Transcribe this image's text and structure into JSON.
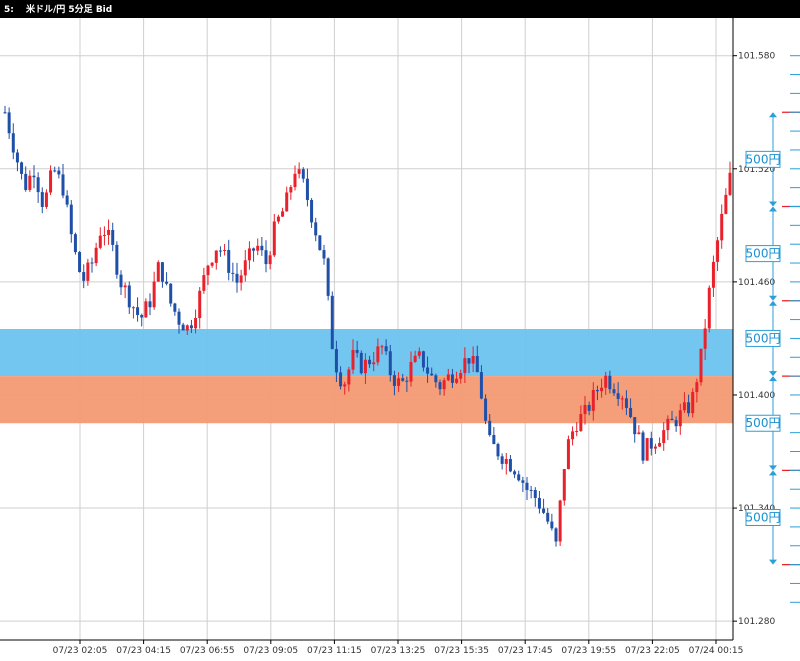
{
  "header": {
    "prefix": "5:",
    "title": "米ドル/円 5分足 Bid"
  },
  "colors": {
    "up": "#e8212a",
    "down": "#1f4fa8",
    "blue_band": "#6cc3ef",
    "orange_band": "#f39a72",
    "marker": "#2a9fd8",
    "red_tick": "#e8212a"
  },
  "chart_data": {
    "type": "candlestick",
    "title": "米ドル/円 5分足 Bid",
    "ylim": [
      101.27,
      101.6
    ],
    "y_ticks": [
      "101.580",
      "101.520",
      "101.460",
      "101.400",
      "101.340",
      "101.280"
    ],
    "x_ticks": [
      "07/23 02:05",
      "07/23 04:15",
      "07/23 06:55",
      "07/23 09:05",
      "07/23 11:15",
      "07/23 13:25",
      "07/23 15:35",
      "07/23 17:45",
      "07/23 19:55",
      "07/23 22:05",
      "07/24 00:15"
    ],
    "grid": true,
    "bands": [
      {
        "label": "500円",
        "from": 101.41,
        "to": 101.435,
        "color": "#6cc3ef"
      },
      {
        "label": "500円",
        "from": 101.385,
        "to": 101.41,
        "color": "#f39a72"
      }
    ],
    "markers": [
      {
        "label": "500円",
        "from": 101.5,
        "to": 101.55
      },
      {
        "label": "500円",
        "from": 101.45,
        "to": 101.5
      },
      {
        "label": "500円",
        "from": 101.41,
        "to": 101.45
      },
      {
        "label": "500円",
        "from": 101.36,
        "to": 101.41
      },
      {
        "label": "500円",
        "from": 101.31,
        "to": 101.36
      }
    ],
    "price_path": [
      101.55,
      101.53,
      101.51,
      101.52,
      101.5,
      101.52,
      101.51,
      101.48,
      101.46,
      101.47,
      101.49,
      101.48,
      101.46,
      101.45,
      101.44,
      101.45,
      101.47,
      101.45,
      101.44,
      101.435,
      101.45,
      101.47,
      101.48,
      101.47,
      101.46,
      101.47,
      101.48,
      101.47,
      101.49,
      101.5,
      101.52,
      101.51,
      101.49,
      101.47,
      101.42,
      101.405,
      101.42,
      101.415,
      101.42,
      101.425,
      101.41,
      101.405,
      101.415,
      101.42,
      101.41,
      101.405,
      101.41,
      101.415,
      101.42,
      101.41,
      101.375,
      101.37,
      101.365,
      101.36,
      101.35,
      101.345,
      101.335,
      101.32,
      101.37,
      101.385,
      101.39,
      101.4,
      101.41,
      101.405,
      101.4,
      101.385,
      101.37,
      101.375,
      101.38,
      101.385,
      101.39,
      101.395,
      101.42,
      101.46,
      101.49,
      101.515
    ]
  }
}
